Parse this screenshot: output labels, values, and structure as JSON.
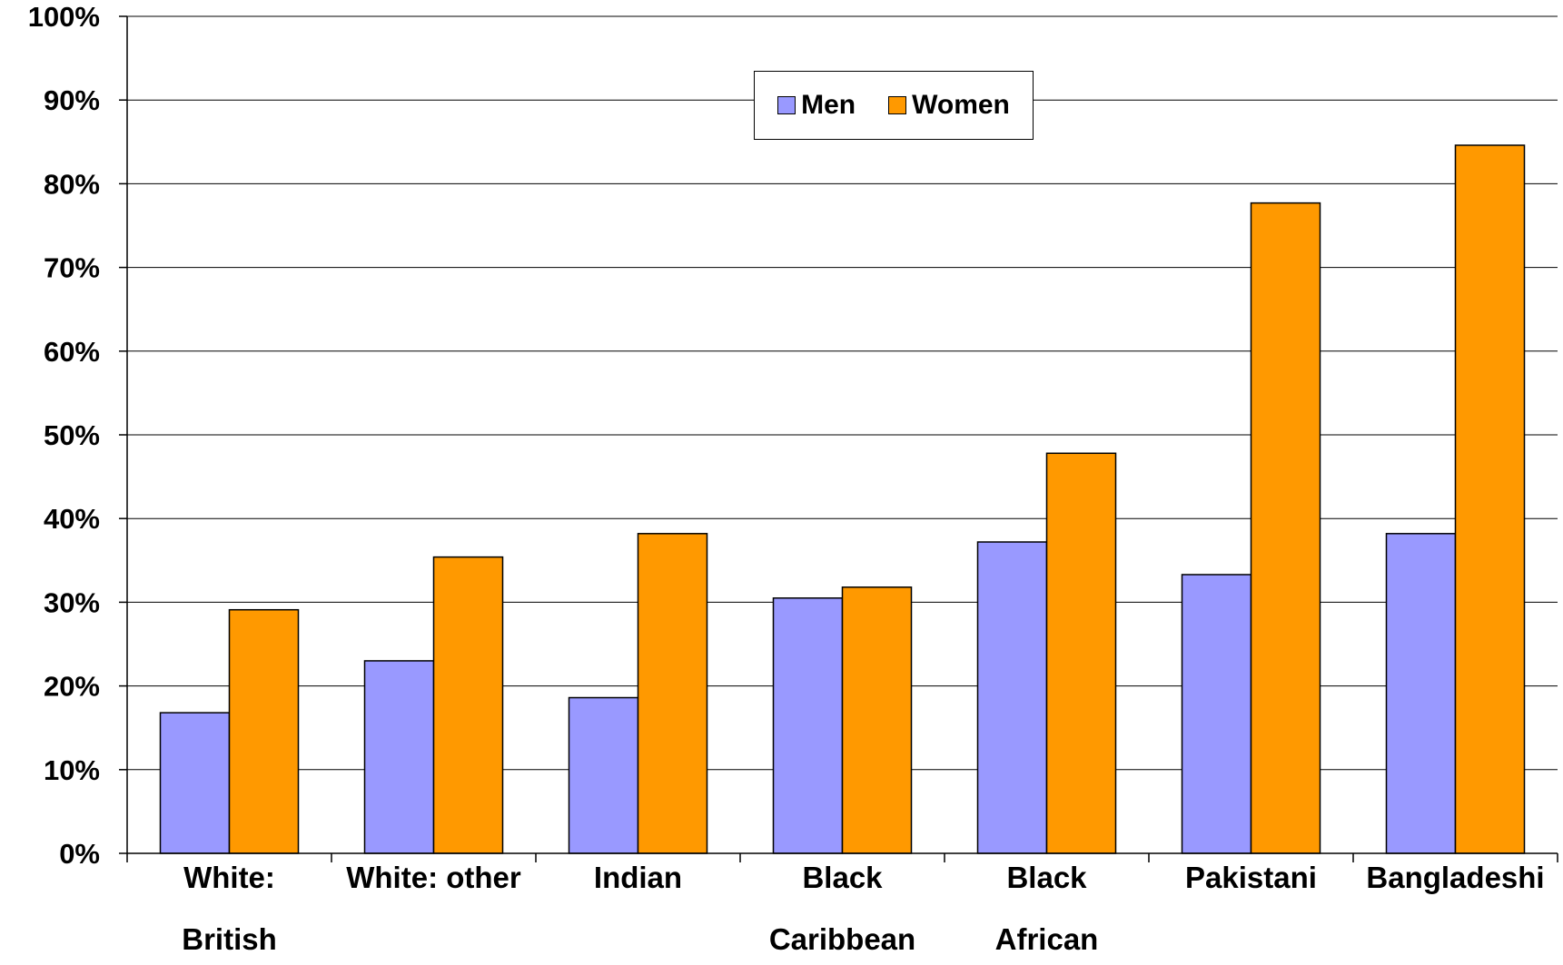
{
  "chart_data": {
    "type": "bar",
    "title": "",
    "xlabel": "",
    "ylabel": "",
    "ylim": [
      0,
      100
    ],
    "yticks": [
      "0%",
      "10%",
      "20%",
      "30%",
      "40%",
      "50%",
      "60%",
      "70%",
      "80%",
      "90%",
      "100%"
    ],
    "grid": true,
    "legend_position": "top-center",
    "categories": [
      "White: British",
      "White: other",
      "Indian",
      "Black Caribbean",
      "Black African",
      "Pakistani",
      "Bangladeshi"
    ],
    "category_lines": [
      [
        "White:",
        "British"
      ],
      [
        "White: other"
      ],
      [
        "Indian"
      ],
      [
        "Black",
        "Caribbean"
      ],
      [
        "Black",
        "African"
      ],
      [
        "Pakistani"
      ],
      [
        "Bangladeshi"
      ]
    ],
    "series": [
      {
        "name": "Men",
        "color": "#9999ff",
        "values": [
          16.8,
          23.0,
          18.6,
          30.5,
          37.2,
          33.3,
          38.2
        ]
      },
      {
        "name": "Women",
        "color": "#ff9900",
        "values": [
          29.1,
          35.4,
          38.2,
          31.8,
          47.8,
          77.7,
          84.6
        ]
      }
    ]
  }
}
